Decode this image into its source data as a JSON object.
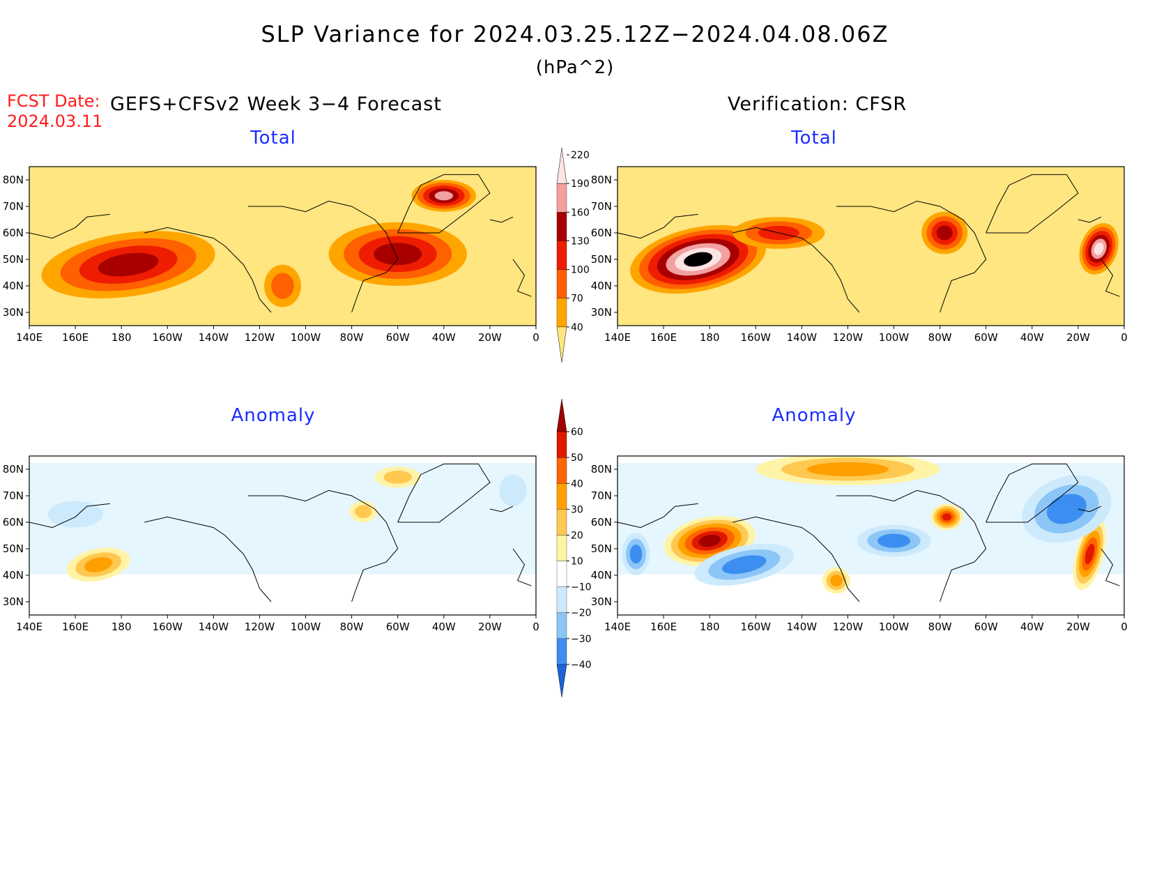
{
  "figure": {
    "title": "SLP Variance for 2024.03.25.12Z−2024.04.08.06Z",
    "units": "(hPa^2)",
    "fcst_date_label": "FCST Date:",
    "fcst_date_value": "2024.03.11",
    "left_header": "GEFS+CFSv2 Week 3−4 Forecast",
    "right_header": "Verification: CFSR"
  },
  "axes": {
    "lon_ticks": [
      "140E",
      "160E",
      "180",
      "160W",
      "140W",
      "120W",
      "100W",
      "80W",
      "60W",
      "40W",
      "20W",
      "0"
    ],
    "lat_ticks": [
      "80N",
      "70N",
      "60N",
      "50N",
      "40N",
      "30N"
    ]
  },
  "panels": [
    {
      "id": "forecast-total",
      "title": "Total",
      "scale": "total",
      "blobs": [
        {
          "lon": 183,
          "lat": 48,
          "rx": 38,
          "ry": 12,
          "level": 4,
          "angle": -8
        },
        {
          "lon": 300,
          "lat": 52,
          "rx": 30,
          "ry": 12,
          "level": 4,
          "angle": 0
        },
        {
          "lon": 320,
          "lat": 74,
          "rx": 14,
          "ry": 6,
          "level": 5,
          "angle": 0
        },
        {
          "lon": 250,
          "lat": 40,
          "rx": 8,
          "ry": 8,
          "level": 2,
          "angle": 0
        }
      ]
    },
    {
      "id": "verification-total",
      "title": "Total",
      "scale": "total",
      "blobs": [
        {
          "lon": 175,
          "lat": 50,
          "rx": 30,
          "ry": 12,
          "level": 7,
          "angle": -12
        },
        {
          "lon": 282,
          "lat": 60,
          "rx": 10,
          "ry": 8,
          "level": 4,
          "angle": 0
        },
        {
          "lon": 349,
          "lat": 54,
          "rx": 8,
          "ry": 10,
          "level": 6,
          "angle": 20
        },
        {
          "lon": 210,
          "lat": 60,
          "rx": 20,
          "ry": 6,
          "level": 3,
          "angle": 0
        }
      ]
    },
    {
      "id": "forecast-anomaly",
      "title": "Anomaly",
      "scale": "anomaly",
      "blobs": [
        {
          "lon": 170,
          "lat": 44,
          "rx": 14,
          "ry": 6,
          "level": 3,
          "angle": -12
        },
        {
          "lon": 300,
          "lat": 77,
          "rx": 10,
          "ry": 4,
          "level": 2,
          "angle": 0
        },
        {
          "lon": 285,
          "lat": 64,
          "rx": 6,
          "ry": 4,
          "level": 2,
          "angle": 0
        },
        {
          "lon": 160,
          "lat": 63,
          "rx": 12,
          "ry": 5,
          "level": -1,
          "angle": 0
        },
        {
          "lon": 350,
          "lat": 72,
          "rx": 6,
          "ry": 6,
          "level": -1,
          "angle": 0
        }
      ]
    },
    {
      "id": "verification-anomaly",
      "title": "Anomaly",
      "scale": "anomaly",
      "blobs": [
        {
          "lon": 180,
          "lat": 53,
          "rx": 20,
          "ry": 9,
          "level": 6,
          "angle": -10
        },
        {
          "lon": 345,
          "lat": 48,
          "rx": 6,
          "ry": 14,
          "level": 5,
          "angle": 15
        },
        {
          "lon": 283,
          "lat": 62,
          "rx": 7,
          "ry": 5,
          "level": 5,
          "angle": 0
        },
        {
          "lon": 240,
          "lat": 80,
          "rx": 40,
          "ry": 6,
          "level": 3,
          "angle": 0
        },
        {
          "lon": 195,
          "lat": 44,
          "rx": 22,
          "ry": 7,
          "level": -3,
          "angle": -12
        },
        {
          "lon": 260,
          "lat": 53,
          "rx": 16,
          "ry": 6,
          "level": -3,
          "angle": 0
        },
        {
          "lon": 335,
          "lat": 65,
          "rx": 20,
          "ry": 12,
          "level": -3,
          "angle": -20
        },
        {
          "lon": 148,
          "lat": 48,
          "rx": 6,
          "ry": 8,
          "level": -3,
          "angle": 0
        },
        {
          "lon": 235,
          "lat": 38,
          "rx": 6,
          "ry": 5,
          "level": 3,
          "angle": 0
        }
      ]
    }
  ],
  "colorbars": {
    "total": {
      "labels": [
        "40",
        "70",
        "100",
        "130",
        "160",
        "190",
        "220"
      ],
      "colors": [
        "#ffe680",
        "#ffa500",
        "#ff6000",
        "#ee1c00",
        "#a80000",
        "#f2a0a0",
        "#fde4e4"
      ]
    },
    "anomaly": {
      "labels": [
        "−40",
        "−30",
        "−20",
        "−10",
        "10",
        "20",
        "30",
        "40",
        "50",
        "60"
      ],
      "colors": [
        "#1c64d8",
        "#3c8ef0",
        "#8cc6f7",
        "#cdeafd",
        "#ffffff",
        "#fff3a6",
        "#ffc850",
        "#ffa000",
        "#ff6400",
        "#e01800",
        "#a00000"
      ]
    }
  }
}
